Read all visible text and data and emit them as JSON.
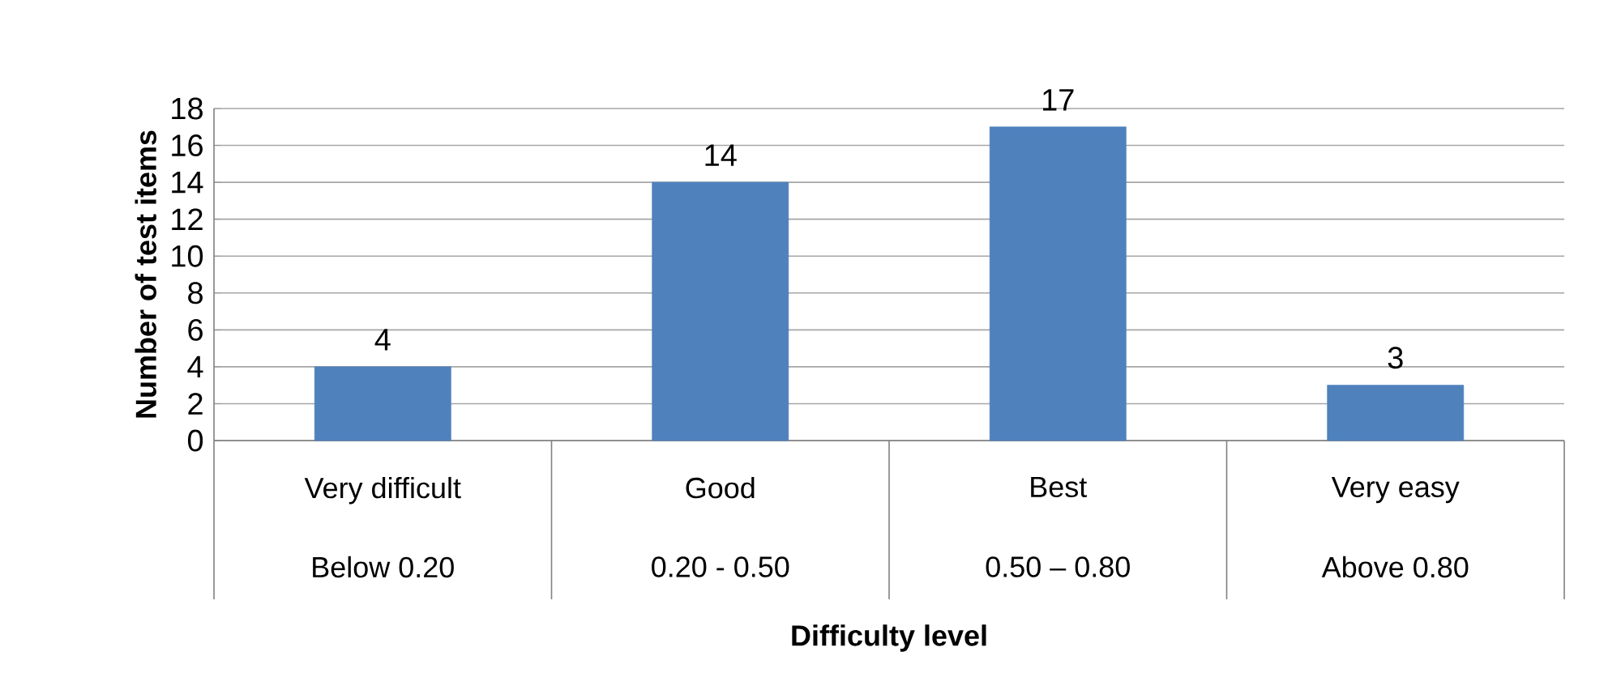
{
  "chart_data": {
    "type": "bar",
    "categories": [
      "Very difficult",
      "Good",
      "Best",
      "Very easy"
    ],
    "values": [
      4,
      14,
      17,
      3
    ],
    "color": "#4f81bd",
    "ylim": [
      0,
      18
    ],
    "yticks": [
      0,
      2,
      4,
      6,
      8,
      10,
      12,
      14,
      16,
      18
    ],
    "grid": "y",
    "data_labels": true,
    "xlabel": "Difficulty level",
    "ylabel": "Number of test items",
    "annotations": [
      "Below 0.20",
      "0.20 - 0.50",
      "0.50 – 0.80",
      "Above 0.80"
    ]
  }
}
